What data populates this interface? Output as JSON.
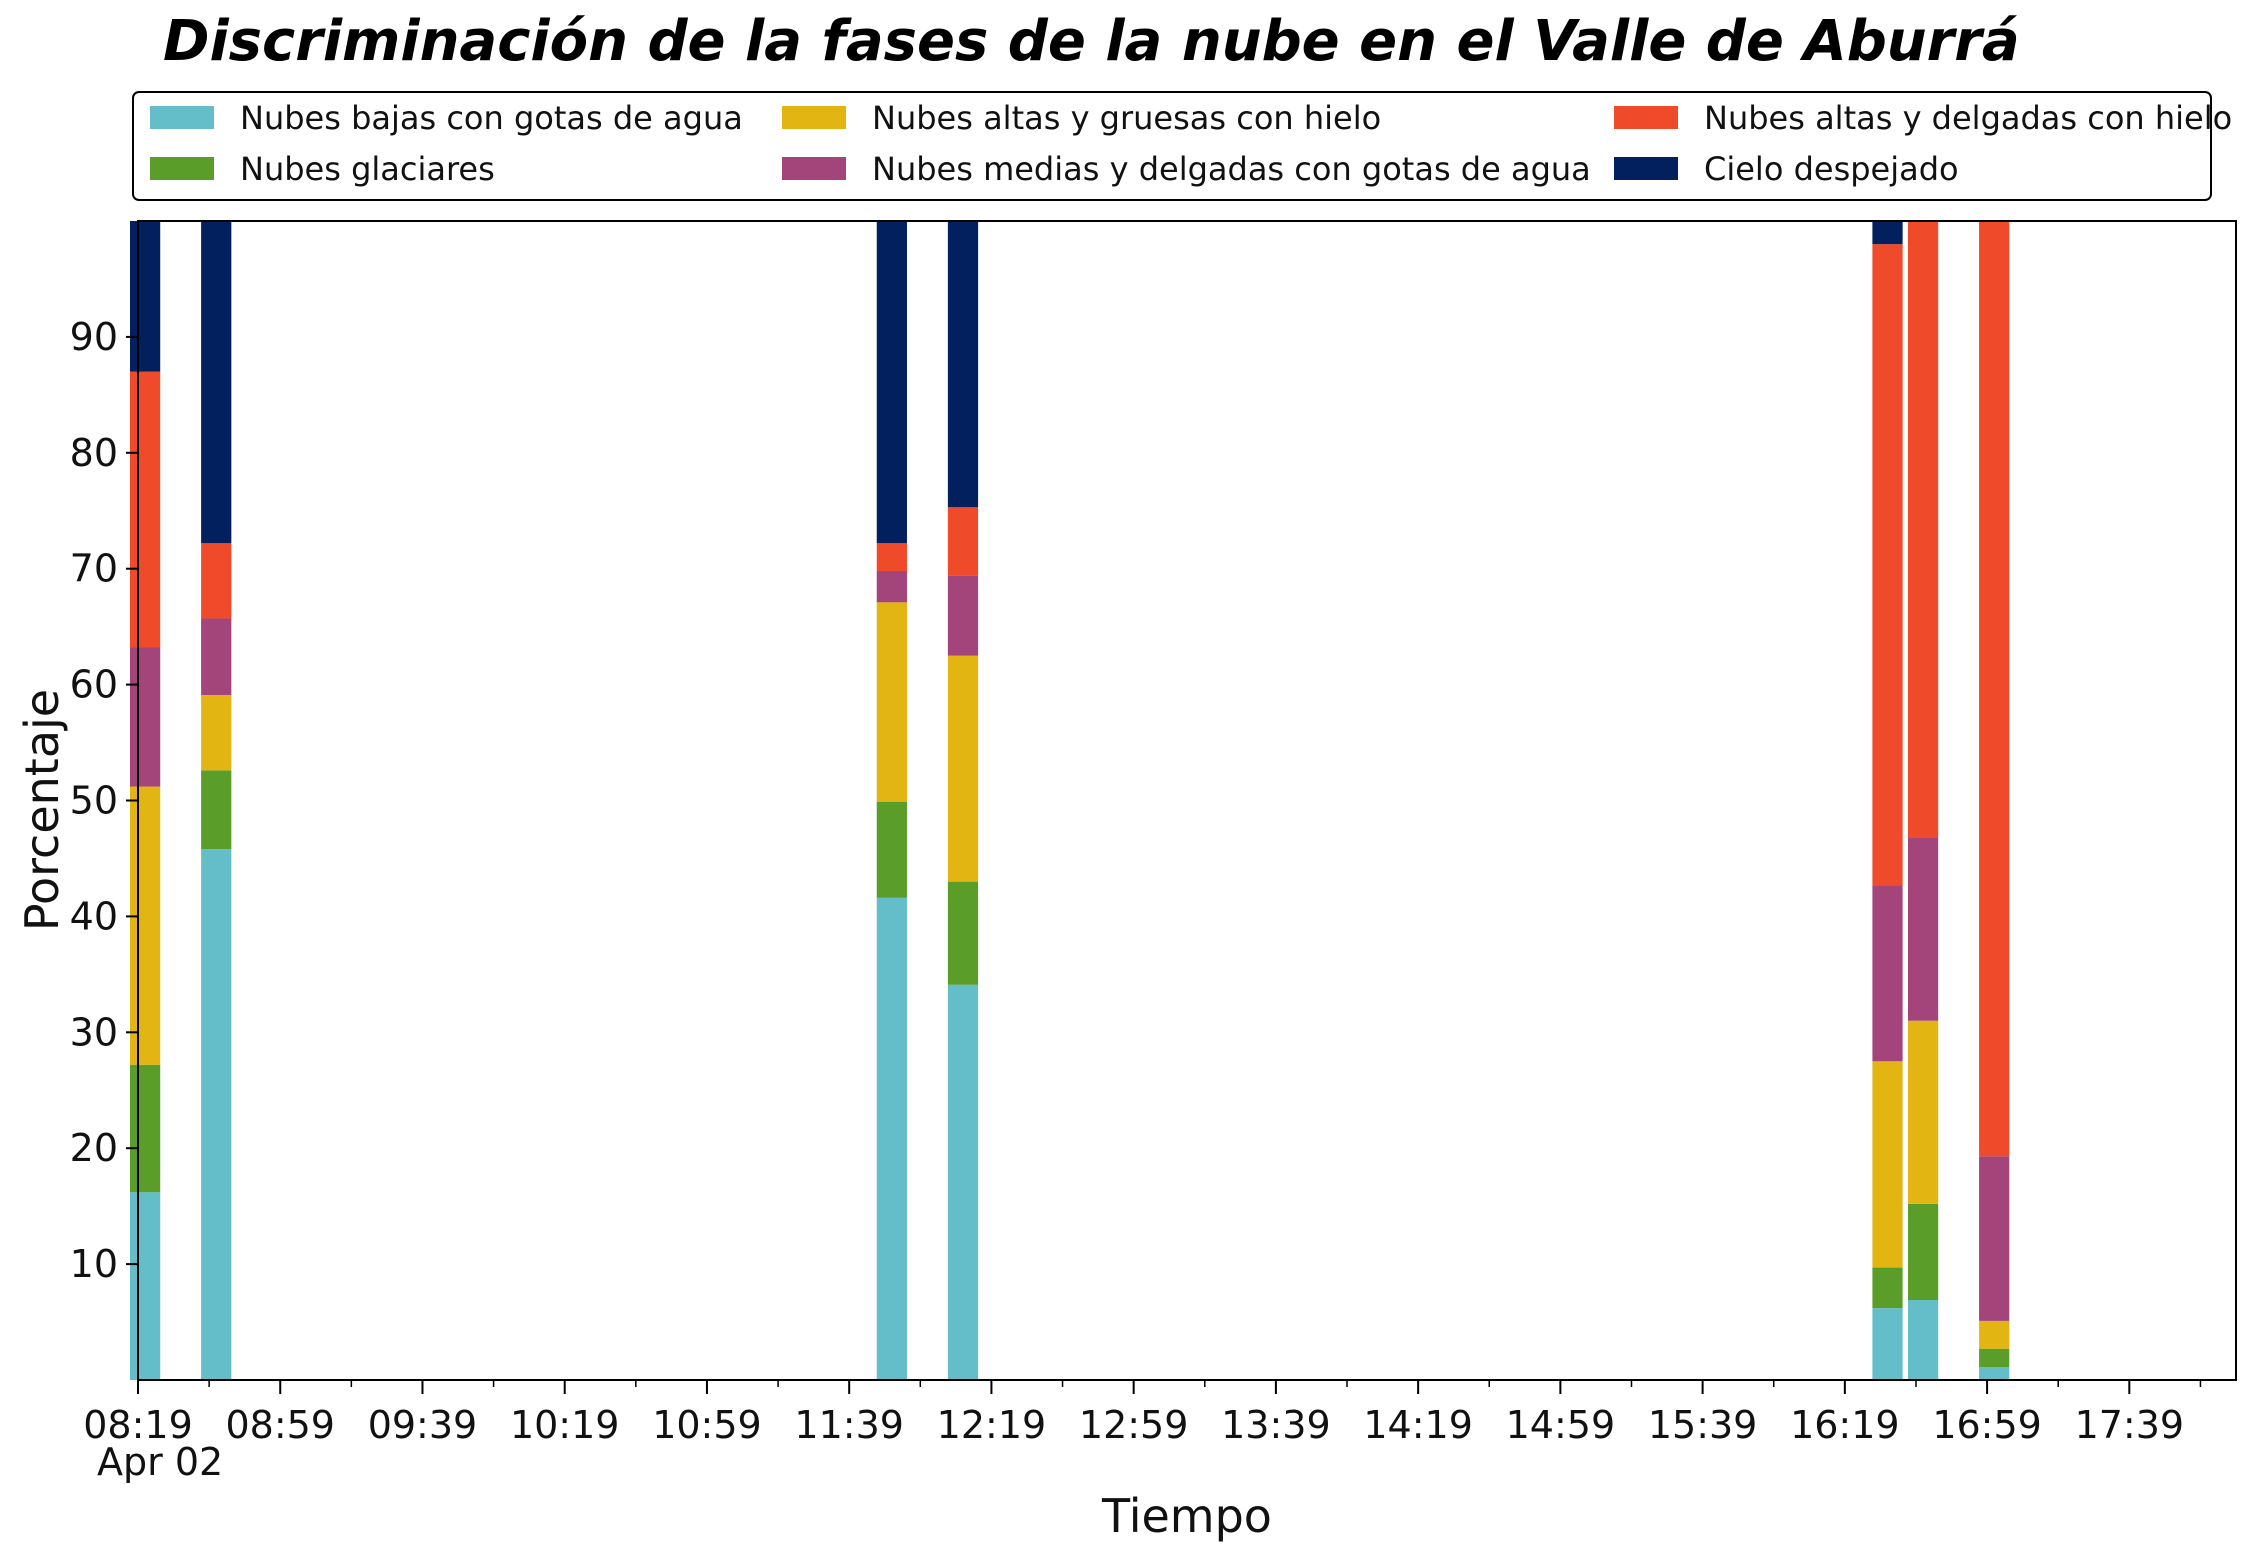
{
  "chart_data": {
    "type": "bar",
    "stacked": true,
    "title": "Discriminación de la fases de la nube en el Valle de Aburrá",
    "xlabel": "Tiempo",
    "ylabel": "Porcentaje",
    "ylim": [
      0,
      100
    ],
    "yticks": [
      10,
      20,
      30,
      40,
      50,
      60,
      70,
      80,
      90
    ],
    "xlim": [
      "08:19",
      "18:09"
    ],
    "xticks": [
      "08:19",
      "08:59",
      "09:39",
      "10:19",
      "10:59",
      "11:39",
      "12:19",
      "12:59",
      "13:39",
      "14:19",
      "14:59",
      "15:39",
      "16:19",
      "16:59",
      "17:39"
    ],
    "x_date_label": "Apr 02",
    "grid": false,
    "legend_position": "top",
    "legend_columns": 3,
    "bar_width_minutes": 8.5,
    "x": [
      "08:21",
      "08:41",
      "11:51",
      "12:11",
      "16:31",
      "16:41",
      "17:01"
    ],
    "series": [
      {
        "name": "Nubes bajas con gotas de agua",
        "color": "#64bec9",
        "values": [
          16.2,
          45.8,
          41.6,
          34.1,
          6.2,
          6.9,
          1.1
        ]
      },
      {
        "name": "Nubes glaciares",
        "color": "#5a9e29",
        "values": [
          11.0,
          6.8,
          8.3,
          8.9,
          3.5,
          8.3,
          1.6
        ]
      },
      {
        "name": "Nubes altas y gruesas con hielo",
        "color": "#e3b512",
        "values": [
          24.0,
          6.5,
          17.2,
          19.5,
          17.8,
          15.8,
          2.4
        ]
      },
      {
        "name": "Nubes medias y delgadas con gotas de agua",
        "color": "#a3447a",
        "values": [
          12.0,
          6.6,
          2.7,
          6.9,
          15.2,
          15.8,
          14.2
        ]
      },
      {
        "name": "Nubes altas y delgadas con hielo",
        "color": "#ef4a2a",
        "values": [
          23.8,
          6.5,
          2.4,
          5.9,
          55.3,
          53.2,
          80.7
        ]
      },
      {
        "name": "Cielo despejado",
        "color": "#021f5e",
        "values": [
          13.0,
          27.8,
          27.8,
          24.7,
          2.0,
          0.0,
          0.0
        ]
      }
    ]
  }
}
